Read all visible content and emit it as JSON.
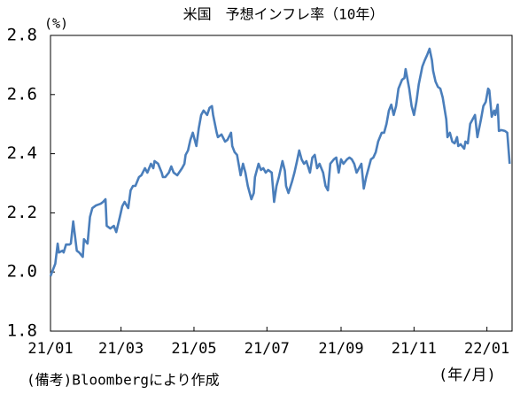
{
  "chart_data": {
    "type": "line",
    "title": "米国　予想インフレ率（10年）",
    "y_unit": "(%)",
    "x_unit": "(年/月)",
    "note": "(備考)Bloombergにより作成",
    "x": [
      0,
      2,
      4,
      6,
      7,
      10,
      11,
      13,
      16,
      17,
      19,
      22,
      24,
      27,
      28,
      31,
      33,
      35,
      38,
      42,
      44,
      46,
      47,
      50,
      53,
      55,
      58,
      60,
      62,
      65,
      67,
      69,
      71,
      74,
      76,
      79,
      81,
      84,
      86,
      87,
      90,
      93,
      94,
      96,
      99,
      101,
      103,
      106,
      110,
      112,
      113,
      115,
      117,
      119,
      122,
      124,
      126,
      128,
      131,
      133,
      135,
      136,
      139,
      140,
      143,
      146,
      148,
      151,
      152,
      154,
      156,
      159,
      161,
      163,
      165,
      168,
      170,
      171,
      174,
      176,
      178,
      180,
      182,
      185,
      187,
      189,
      191,
      194,
      196,
      197,
      199,
      202,
      204,
      206,
      208,
      210,
      212,
      214,
      217,
      219,
      221,
      223,
      225,
      228,
      230,
      232,
      234,
      237,
      239,
      241,
      243,
      245,
      248,
      250,
      252,
      254,
      256,
      258,
      260,
      262,
      264,
      265,
      268,
      270,
      272,
      274,
      277,
      279,
      281,
      283,
      285,
      287,
      289,
      291,
      294,
      296,
      297,
      300,
      302,
      304,
      306,
      308,
      311,
      313,
      315,
      317,
      319,
      320,
      322,
      324,
      326,
      328,
      331,
      332,
      334,
      336,
      338,
      340,
      341,
      343,
      346,
      347,
      349,
      351,
      353,
      355,
      357,
      360,
      362,
      364,
      366,
      367,
      369,
      371,
      372,
      374,
      375,
      377,
      380,
      382,
      384
    ],
    "series": [
      {
        "color": "#4a7ebb",
        "values": [
          1.986,
          2.007,
          2.028,
          2.096,
          2.066,
          2.072,
          2.066,
          2.093,
          2.093,
          2.096,
          2.171,
          2.072,
          2.066,
          2.051,
          2.111,
          2.096,
          2.186,
          2.216,
          2.225,
          2.231,
          2.237,
          2.246,
          2.156,
          2.147,
          2.156,
          2.135,
          2.186,
          2.222,
          2.237,
          2.216,
          2.276,
          2.291,
          2.291,
          2.321,
          2.327,
          2.351,
          2.336,
          2.366,
          2.351,
          2.375,
          2.366,
          2.336,
          2.321,
          2.321,
          2.336,
          2.357,
          2.336,
          2.327,
          2.351,
          2.366,
          2.396,
          2.411,
          2.447,
          2.471,
          2.426,
          2.486,
          2.531,
          2.546,
          2.531,
          2.555,
          2.561,
          2.531,
          2.471,
          2.456,
          2.465,
          2.441,
          2.447,
          2.471,
          2.426,
          2.405,
          2.396,
          2.327,
          2.366,
          2.336,
          2.291,
          2.246,
          2.267,
          2.321,
          2.366,
          2.345,
          2.351,
          2.336,
          2.345,
          2.336,
          2.237,
          2.291,
          2.321,
          2.375,
          2.342,
          2.291,
          2.267,
          2.306,
          2.336,
          2.372,
          2.411,
          2.381,
          2.366,
          2.375,
          2.336,
          2.387,
          2.396,
          2.351,
          2.366,
          2.336,
          2.291,
          2.276,
          2.366,
          2.381,
          2.387,
          2.336,
          2.381,
          2.366,
          2.381,
          2.387,
          2.381,
          2.366,
          2.336,
          2.351,
          2.366,
          2.282,
          2.321,
          2.336,
          2.381,
          2.387,
          2.405,
          2.441,
          2.471,
          2.471,
          2.501,
          2.546,
          2.566,
          2.531,
          2.561,
          2.62,
          2.65,
          2.656,
          2.686,
          2.62,
          2.561,
          2.531,
          2.575,
          2.635,
          2.695,
          2.716,
          2.734,
          2.755,
          2.716,
          2.68,
          2.644,
          2.626,
          2.62,
          2.59,
          2.516,
          2.456,
          2.471,
          2.441,
          2.435,
          2.456,
          2.426,
          2.432,
          2.417,
          2.441,
          2.435,
          2.501,
          2.516,
          2.531,
          2.456,
          2.516,
          2.561,
          2.575,
          2.62,
          2.614,
          2.525,
          2.546,
          2.531,
          2.566,
          2.477,
          2.48,
          2.477,
          2.471,
          2.366
        ]
      }
    ],
    "xlim": [
      0,
      386
    ],
    "xticks": [
      {
        "value": 0,
        "label": "21/01"
      },
      {
        "value": 59,
        "label": "21/03"
      },
      {
        "value": 120,
        "label": "21/05"
      },
      {
        "value": 181,
        "label": "21/07"
      },
      {
        "value": 243,
        "label": "21/09"
      },
      {
        "value": 304,
        "label": "21/11"
      },
      {
        "value": 365,
        "label": "22/01"
      }
    ],
    "ylim": [
      1.8,
      2.8
    ],
    "yticks": [
      1.8,
      {
        "value": 2,
        "label": "2.0"
      },
      2.2,
      2.4,
      2.6,
      2.8
    ],
    "grid": false
  }
}
